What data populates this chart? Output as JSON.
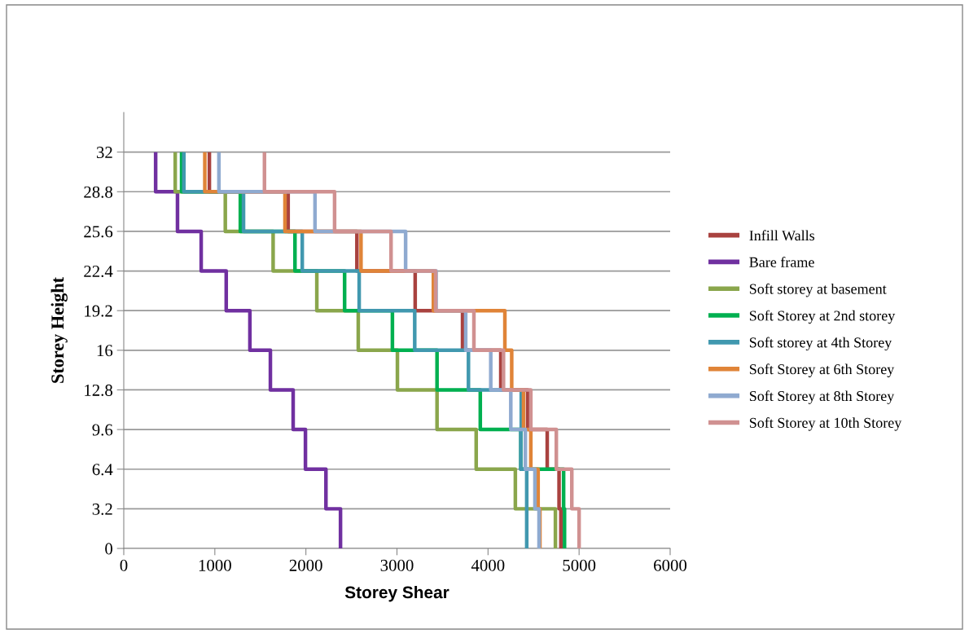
{
  "chart_data": {
    "type": "line",
    "xlabel": "Storey Shear",
    "ylabel": "Storey Height",
    "xlim": [
      0,
      6000
    ],
    "xticks": [
      0,
      1000,
      2000,
      3000,
      4000,
      5000,
      6000
    ],
    "ylim": [
      0,
      35.2
    ],
    "yticks": [
      0,
      3.2,
      6.4,
      9.6,
      12.8,
      16,
      19.2,
      22.4,
      25.6,
      28.8,
      32
    ],
    "grid": "y",
    "legend": "right",
    "marker": "none",
    "line_style": "solid",
    "series": [
      {
        "name": "Infill Walls",
        "color": "#a9423f",
        "x": [
          4800,
          4800,
          4780,
          4780,
          4650,
          4650,
          4435,
          4435,
          4140,
          4140,
          3720,
          3720,
          3200,
          3200,
          2560,
          2560,
          1805,
          1805,
          940,
          940
        ],
        "values": [
          0,
          3.2,
          3.2,
          6.4,
          6.4,
          9.6,
          9.6,
          12.8,
          12.8,
          16,
          16,
          19.2,
          19.2,
          22.4,
          22.4,
          25.6,
          25.6,
          28.8,
          28.8,
          32
        ]
      },
      {
        "name": "Bare frame",
        "color": "#7030a0",
        "x": [
          2380,
          2380,
          2220,
          2220,
          1995,
          1995,
          1860,
          1860,
          1610,
          1610,
          1385,
          1385,
          1125,
          1125,
          850,
          850,
          590,
          590,
          350,
          350
        ],
        "values": [
          0,
          3.2,
          3.2,
          6.4,
          6.4,
          9.6,
          9.6,
          12.8,
          12.8,
          16,
          16,
          19.2,
          19.2,
          22.4,
          22.4,
          25.6,
          25.6,
          28.8,
          28.8,
          32
        ]
      },
      {
        "name": "Soft storey at basement",
        "color": "#8aa64c",
        "x": [
          4740,
          4740,
          4300,
          4300,
          3870,
          3870,
          3440,
          3440,
          3005,
          3005,
          2575,
          2575,
          2120,
          2120,
          1640,
          1640,
          1115,
          1115,
          565,
          565
        ],
        "values": [
          0,
          3.2,
          3.2,
          6.4,
          6.4,
          9.6,
          9.6,
          12.8,
          12.8,
          16,
          16,
          19.2,
          19.2,
          22.4,
          22.4,
          25.6,
          25.6,
          28.8,
          28.8,
          32
        ]
      },
      {
        "name": "Soft Storey at 2nd storey",
        "color": "#00b050",
        "x": [
          4840,
          4840,
          4830,
          4830,
          4360,
          4360,
          3915,
          3915,
          3440,
          3440,
          2950,
          2950,
          2425,
          2425,
          1880,
          1880,
          1280,
          1280,
          635,
          635
        ],
        "values": [
          0,
          3.2,
          3.2,
          6.4,
          6.4,
          9.6,
          9.6,
          12.8,
          12.8,
          16,
          16,
          19.2,
          19.2,
          22.4,
          22.4,
          25.6,
          25.6,
          28.8,
          28.8,
          32
        ]
      },
      {
        "name": "Soft storey at 4th Storey",
        "color": "#4198af",
        "x": [
          4425,
          4425,
          4425,
          4425,
          4360,
          4360,
          4365,
          4365,
          3785,
          3785,
          3195,
          3195,
          2585,
          2585,
          1960,
          1960,
          1315,
          1315,
          660,
          660
        ],
        "values": [
          0,
          3.2,
          3.2,
          6.4,
          6.4,
          9.6,
          9.6,
          12.8,
          12.8,
          16,
          16,
          19.2,
          19.2,
          22.4,
          22.4,
          25.6,
          25.6,
          28.8,
          28.8,
          32
        ]
      },
      {
        "name": "Soft Storey at 6th Storey",
        "color": "#e08438",
        "x": [
          4570,
          4570,
          4550,
          4550,
          4470,
          4470,
          4390,
          4390,
          4260,
          4260,
          4185,
          4185,
          3400,
          3400,
          2605,
          2605,
          1770,
          1770,
          890,
          890
        ],
        "values": [
          0,
          3.2,
          3.2,
          6.4,
          6.4,
          9.6,
          9.6,
          12.8,
          12.8,
          16,
          16,
          19.2,
          19.2,
          22.4,
          22.4,
          25.6,
          25.6,
          28.8,
          28.8,
          32
        ]
      },
      {
        "name": "Soft Storey at 8th Storey",
        "color": "#8faad0",
        "x": [
          4560,
          4560,
          4515,
          4515,
          4410,
          4410,
          4250,
          4250,
          4030,
          4030,
          3755,
          3755,
          3430,
          3430,
          3095,
          3095,
          2100,
          2100,
          1045,
          1045
        ],
        "values": [
          0,
          3.2,
          3.2,
          6.4,
          6.4,
          9.6,
          9.6,
          12.8,
          12.8,
          16,
          16,
          19.2,
          19.2,
          22.4,
          22.4,
          25.6,
          25.6,
          28.8,
          28.8,
          32
        ]
      },
      {
        "name": "Soft Storey at 10th Storey",
        "color": "#d09191",
        "x": [
          5000,
          5000,
          4920,
          4920,
          4750,
          4750,
          4470,
          4470,
          4170,
          4170,
          3845,
          3845,
          3425,
          3425,
          2935,
          2935,
          2315,
          2315,
          1545,
          1545
        ],
        "values": [
          0,
          3.2,
          3.2,
          6.4,
          6.4,
          9.6,
          9.6,
          12.8,
          12.8,
          16,
          16,
          19.2,
          19.2,
          22.4,
          22.4,
          25.6,
          25.6,
          28.8,
          28.8,
          32
        ]
      }
    ]
  }
}
